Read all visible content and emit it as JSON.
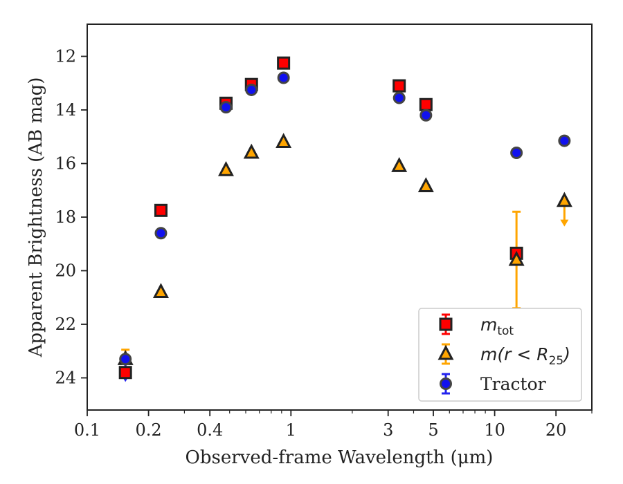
{
  "chart_data": {
    "type": "scatter",
    "xlabel": "Observed-frame Wavelength (μm)",
    "ylabel": "Apparent Brightness (AB mag)",
    "xscale": "log",
    "xlim": [
      0.1,
      30
    ],
    "ylim": [
      25.2,
      10.8
    ],
    "y_inverted": true,
    "xticks": [
      {
        "value": 0.1,
        "label": "0.1"
      },
      {
        "value": 0.2,
        "label": "0.2"
      },
      {
        "value": 0.4,
        "label": "0.4"
      },
      {
        "value": 1,
        "label": "1"
      },
      {
        "value": 3,
        "label": "3"
      },
      {
        "value": 5,
        "label": "5"
      },
      {
        "value": 10,
        "label": "10"
      },
      {
        "value": 20,
        "label": "20"
      }
    ],
    "yticks": [
      {
        "value": 12,
        "label": "12"
      },
      {
        "value": 14,
        "label": "14"
      },
      {
        "value": 16,
        "label": "16"
      },
      {
        "value": 18,
        "label": "18"
      },
      {
        "value": 20,
        "label": "20"
      },
      {
        "value": 22,
        "label": "22"
      },
      {
        "value": 24,
        "label": "24"
      }
    ],
    "grid": false,
    "legend_position": "lower-right",
    "series": [
      {
        "key": "mtot",
        "legend_main": "m",
        "legend_sub": "tot",
        "marker": "square",
        "color": "#ff0000",
        "edge": "#222222",
        "points": [
          {
            "x": 0.154,
            "y": 23.8
          },
          {
            "x": 0.23,
            "y": 17.75
          },
          {
            "x": 0.48,
            "y": 13.75
          },
          {
            "x": 0.64,
            "y": 13.05
          },
          {
            "x": 0.92,
            "y": 12.25
          },
          {
            "x": 3.4,
            "y": 13.1
          },
          {
            "x": 4.6,
            "y": 13.8
          },
          {
            "x": 12.8,
            "y": 19.35
          }
        ]
      },
      {
        "key": "mr25",
        "legend_main": "m(r < R",
        "legend_sub": "25",
        "legend_close": ")",
        "marker": "triangle",
        "color": "#ffa500",
        "edge": "#222222",
        "points": [
          {
            "x": 0.154,
            "y": 23.3,
            "err_lo": 0.35,
            "err_hi": 0.35
          },
          {
            "x": 0.23,
            "y": 20.8
          },
          {
            "x": 0.48,
            "y": 16.25
          },
          {
            "x": 0.64,
            "y": 15.6
          },
          {
            "x": 0.92,
            "y": 15.2
          },
          {
            "x": 3.4,
            "y": 16.1
          },
          {
            "x": 4.6,
            "y": 16.85
          },
          {
            "x": 12.8,
            "y": 19.6,
            "err_lo": 1.8,
            "err_hi": 1.8
          },
          {
            "x": 22,
            "y": 17.4,
            "upper_limit_to": 18.3
          }
        ]
      },
      {
        "key": "tractor",
        "legend_main": "Tractor",
        "marker": "circle",
        "color": "#1111ee",
        "edge": "#444444",
        "points": [
          {
            "x": 0.154,
            "y": 23.3,
            "upper_limit_to": 24.1
          },
          {
            "x": 0.23,
            "y": 18.6
          },
          {
            "x": 0.48,
            "y": 13.9
          },
          {
            "x": 0.64,
            "y": 13.25
          },
          {
            "x": 0.92,
            "y": 12.8
          },
          {
            "x": 3.4,
            "y": 13.55
          },
          {
            "x": 4.6,
            "y": 14.2
          },
          {
            "x": 12.8,
            "y": 15.6
          },
          {
            "x": 22,
            "y": 15.15
          }
        ]
      }
    ]
  }
}
